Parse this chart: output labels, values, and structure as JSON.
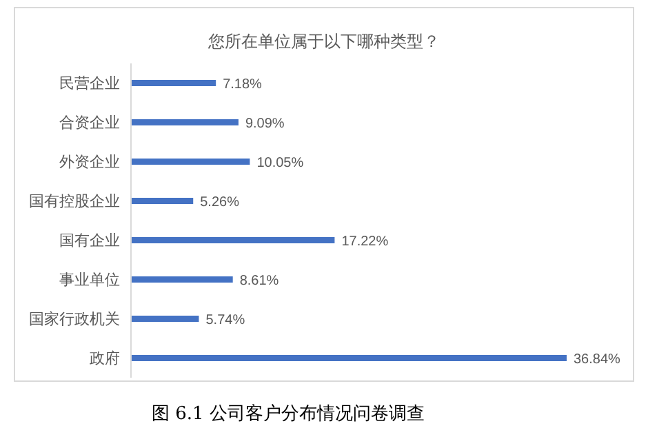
{
  "chart_data": {
    "type": "bar",
    "orientation": "horizontal",
    "tick_labels": "y",
    "title": "您所在单位属于以下哪种类型？",
    "categories": [
      "民营企业",
      "合资企业",
      "外资企业",
      "国有控股企业",
      "国有企业",
      "事业单位",
      "国家行政机关",
      "政府"
    ],
    "values": [
      7.18,
      9.09,
      10.05,
      5.26,
      17.22,
      8.61,
      5.74,
      36.84
    ],
    "value_labels": [
      "7.18%",
      "9.09%",
      "10.05%",
      "5.26%",
      "17.22%",
      "8.61%",
      "5.74%",
      "36.84%"
    ],
    "color": "#4472c4",
    "grid": false,
    "annotations": [
      "图 6.1 公司客户分布情况问卷调查"
    ]
  }
}
